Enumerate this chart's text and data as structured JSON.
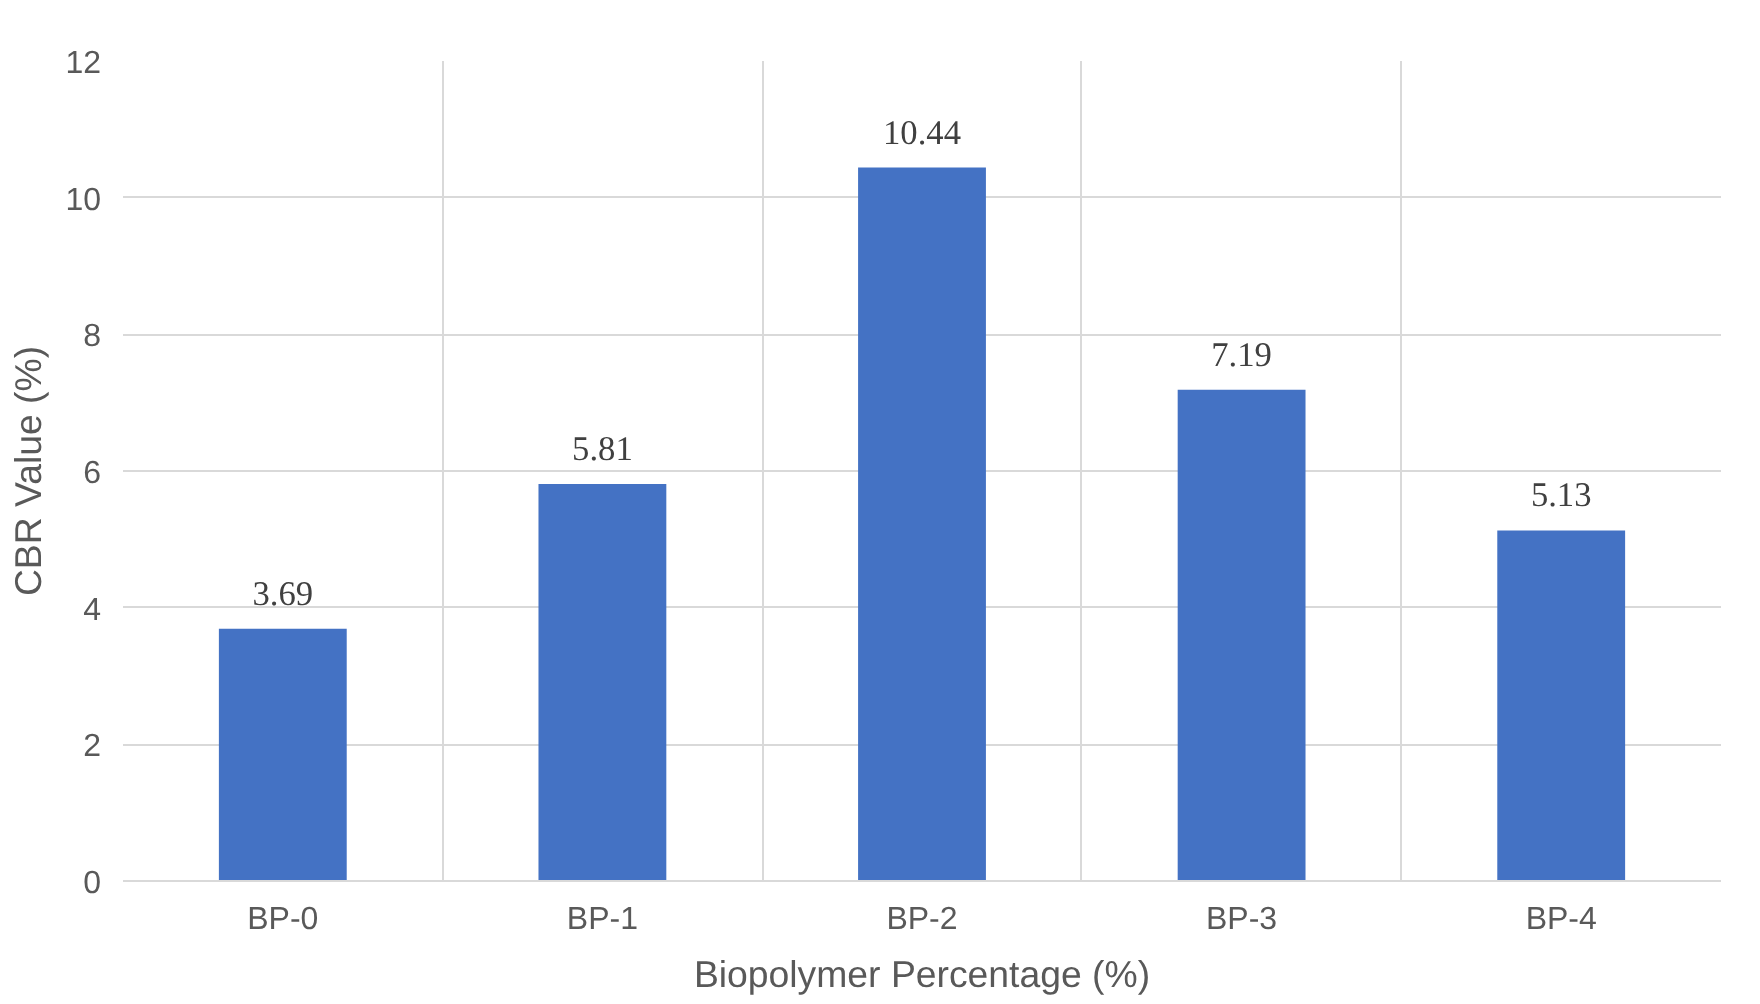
{
  "chart_data": {
    "type": "bar",
    "categories": [
      "BP-0",
      "BP-1",
      "BP-2",
      "BP-3",
      "BP-4"
    ],
    "values": [
      3.69,
      5.81,
      10.44,
      7.19,
      5.13
    ],
    "color": "#4472c4",
    "xlabel": "Biopolymer Percentage (%)",
    "ylabel": "CBR Value (%)",
    "ylim": [
      0,
      12
    ],
    "yticks": [
      0,
      2,
      4,
      6,
      8,
      10,
      12
    ],
    "grid": true,
    "data_labels": true
  }
}
